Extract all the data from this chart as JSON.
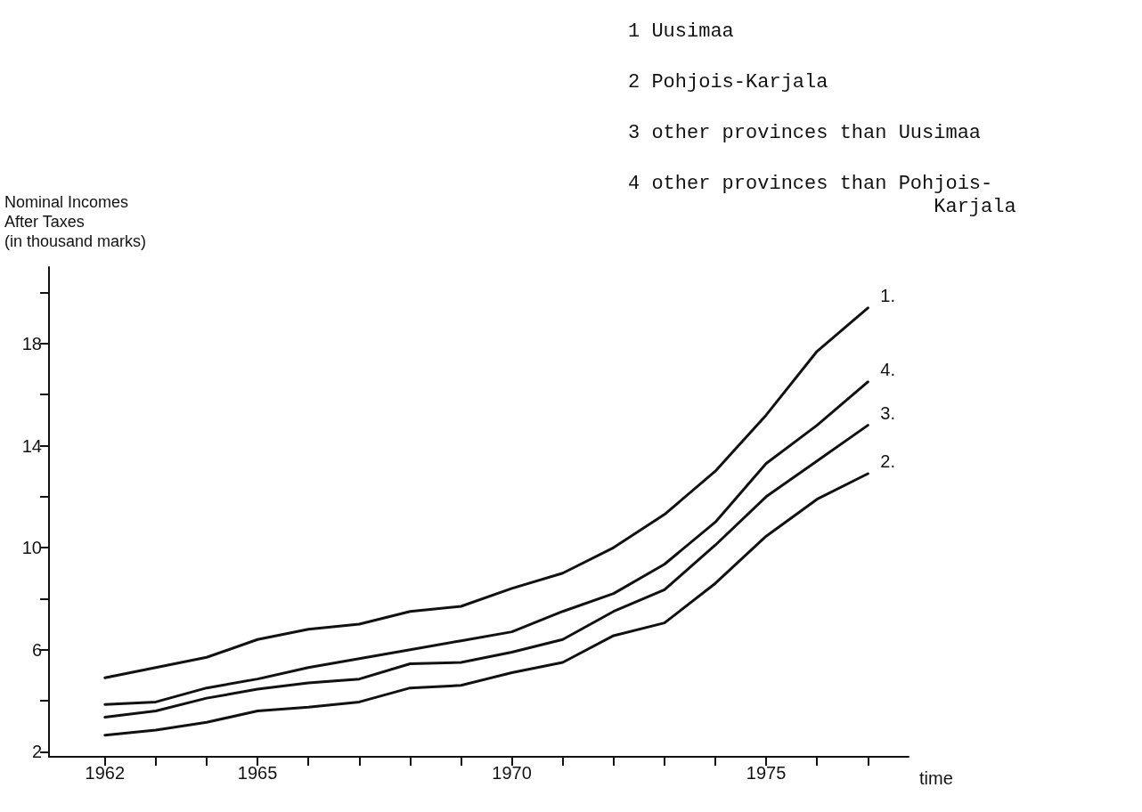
{
  "chart_data": {
    "type": "line",
    "ylabel": "Nominal Incomes\nAfter Taxes\n(in thousand marks)",
    "xlabel": "time",
    "x": [
      1962,
      1963,
      1964,
      1965,
      1966,
      1967,
      1968,
      1969,
      1970,
      1971,
      1972,
      1973,
      1974,
      1975,
      1976,
      1977
    ],
    "series": [
      {
        "name": "1.",
        "color": "#111111",
        "values": [
          4.9,
          5.3,
          5.7,
          6.4,
          6.8,
          7.0,
          7.5,
          7.7,
          8.4,
          9.0,
          10.0,
          11.3,
          13.0,
          15.2,
          17.7,
          19.4
        ]
      },
      {
        "name": "4.",
        "color": "#111111",
        "values": [
          3.85,
          3.95,
          4.5,
          4.85,
          5.3,
          5.65,
          6.0,
          6.35,
          6.7,
          7.5,
          8.2,
          9.35,
          11.0,
          13.3,
          14.8,
          16.5
        ]
      },
      {
        "name": "3.",
        "color": "#111111",
        "values": [
          3.35,
          3.6,
          4.1,
          4.45,
          4.7,
          4.85,
          5.45,
          5.5,
          5.9,
          6.4,
          7.5,
          8.35,
          10.1,
          12.0,
          13.4,
          14.8
        ]
      },
      {
        "name": "2.",
        "color": "#111111",
        "values": [
          2.65,
          2.85,
          3.15,
          3.6,
          3.75,
          3.95,
          4.5,
          4.6,
          5.1,
          5.5,
          6.55,
          7.05,
          8.6,
          10.45,
          11.9,
          12.9
        ]
      }
    ],
    "annotations": [
      "1 Uusimaa",
      "2 Pohjois-Karjala",
      "3 other provinces than Uusimaa",
      "4 other provinces than Pohjois-\n                          Karjala"
    ],
    "xlim": [
      1960.9,
      1977.8
    ],
    "xticks": [
      {
        "value": 1962,
        "label": "1962"
      },
      {
        "value": 1963,
        "label": null
      },
      {
        "value": 1964,
        "label": null
      },
      {
        "value": 1965,
        "label": "1965"
      },
      {
        "value": 1966,
        "label": null
      },
      {
        "value": 1967,
        "label": null
      },
      {
        "value": 1968,
        "label": null
      },
      {
        "value": 1969,
        "label": null
      },
      {
        "value": 1970,
        "label": "1970"
      },
      {
        "value": 1971,
        "label": null
      },
      {
        "value": 1972,
        "label": null
      },
      {
        "value": 1973,
        "label": null
      },
      {
        "value": 1974,
        "label": null
      },
      {
        "value": 1975,
        "label": "1975"
      },
      {
        "value": 1976,
        "label": null
      },
      {
        "value": 1977,
        "label": null
      }
    ],
    "ylim": [
      1.8,
      21
    ],
    "yticks": [
      2,
      {
        "value": 4,
        "label": null
      },
      6,
      {
        "value": 8,
        "label": null
      },
      10,
      {
        "value": 12,
        "label": null
      },
      14,
      {
        "value": 16,
        "label": null
      },
      18,
      {
        "value": 20,
        "label": null
      }
    ],
    "grid": false,
    "legend": false,
    "marker": "none",
    "line_style": "solid"
  }
}
